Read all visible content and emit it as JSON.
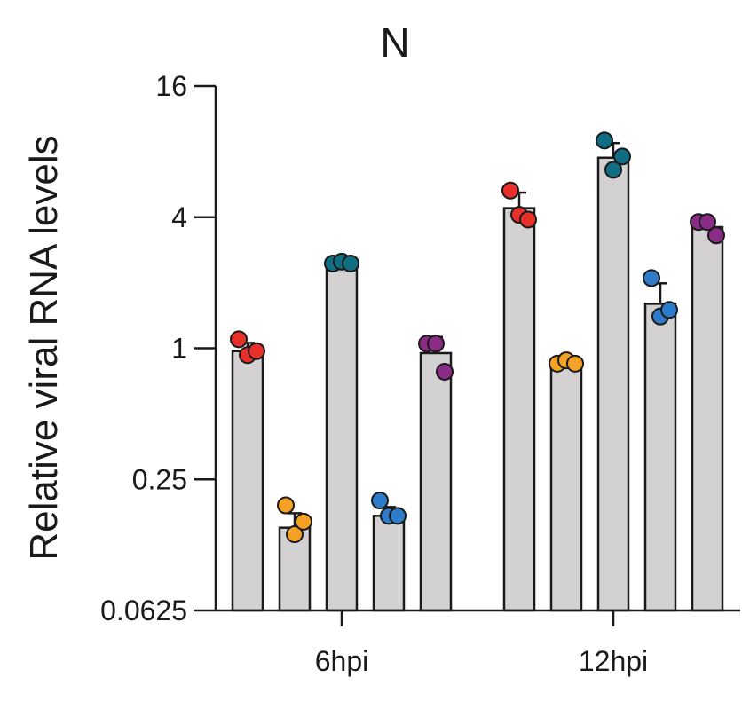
{
  "chart_data": {
    "type": "bar",
    "title": "N",
    "ylabel": "Relative viral RNA levels",
    "xlabel": "",
    "y_scale": "log2",
    "ylim": [
      0.0625,
      16
    ],
    "y_ticks": [
      {
        "value": 0.0625,
        "label": "0.0625"
      },
      {
        "value": 0.25,
        "label": "0.25"
      },
      {
        "value": 1,
        "label": "1"
      },
      {
        "value": 4,
        "label": "4"
      },
      {
        "value": 16,
        "label": "16"
      }
    ],
    "categories": [
      "6hpi",
      "12hpi"
    ],
    "grid": false,
    "legend": "none",
    "series": [
      {
        "color": "#e8302a",
        "values": [
          0.97,
          4.4
        ],
        "points": [
          [
            1.1,
            0.93,
            0.97
          ],
          [
            5.3,
            4.1,
            3.9
          ]
        ]
      },
      {
        "color": "#f5a126",
        "values": [
          0.15,
          0.86
        ],
        "points": [
          [
            0.19,
            0.14,
            0.16
          ],
          [
            0.85,
            0.88,
            0.85
          ]
        ]
      },
      {
        "color": "#0f6e84",
        "values": [
          2.45,
          7.5
        ],
        "points": [
          [
            2.45,
            2.5,
            2.45
          ],
          [
            9.0,
            6.6,
            7.6
          ]
        ]
      },
      {
        "color": "#2e7bc9",
        "values": [
          0.17,
          1.6
        ],
        "points": [
          [
            0.2,
            0.17,
            0.17
          ],
          [
            2.1,
            1.4,
            1.5
          ]
        ]
      },
      {
        "color": "#8a2c86",
        "values": [
          0.95,
          3.6
        ],
        "points": [
          [
            1.05,
            1.05,
            0.78
          ],
          [
            3.8,
            3.8,
            3.3
          ]
        ]
      }
    ]
  }
}
